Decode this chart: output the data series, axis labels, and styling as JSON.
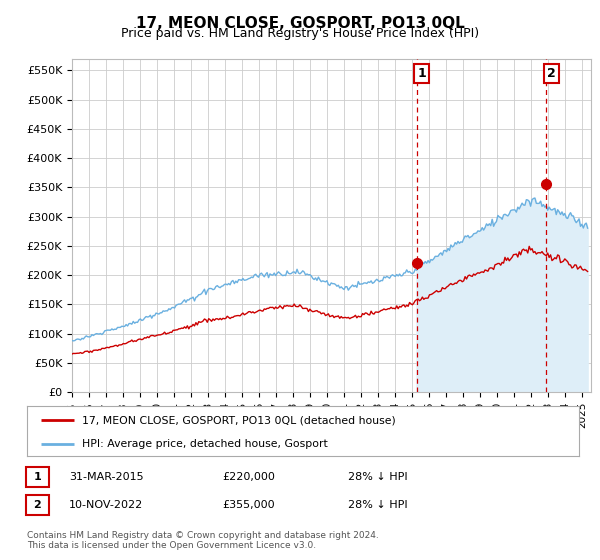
{
  "title": "17, MEON CLOSE, GOSPORT, PO13 0QL",
  "subtitle": "Price paid vs. HM Land Registry's House Price Index (HPI)",
  "ylabel_ticks": [
    "£0",
    "£50K",
    "£100K",
    "£150K",
    "£200K",
    "£250K",
    "£300K",
    "£350K",
    "£400K",
    "£450K",
    "£500K",
    "£550K"
  ],
  "ytick_values": [
    0,
    50000,
    100000,
    150000,
    200000,
    250000,
    300000,
    350000,
    400000,
    450000,
    500000,
    550000
  ],
  "ylim": [
    0,
    570000
  ],
  "xlim_start": 1995.0,
  "xlim_end": 2025.5,
  "vline1_x": 2015.25,
  "vline2_x": 2022.87,
  "marker1_x": 2015.25,
  "marker1_y": 220000,
  "marker2_x": 2022.87,
  "marker2_y": 355000,
  "hpi_color": "#6ab0e0",
  "hpi_fill_color": "#deeef8",
  "price_color": "#cc0000",
  "vline_color": "#cc0000",
  "background_color": "#ffffff",
  "grid_color": "#cccccc",
  "legend_label1": "17, MEON CLOSE, GOSPORT, PO13 0QL (detached house)",
  "legend_label2": "HPI: Average price, detached house, Gosport",
  "annotation1_label": "1",
  "annotation2_label": "2",
  "table_row1": [
    "1",
    "31-MAR-2015",
    "£220,000",
    "28% ↓ HPI"
  ],
  "table_row2": [
    "2",
    "10-NOV-2022",
    "£355,000",
    "28% ↓ HPI"
  ],
  "footer": "Contains HM Land Registry data © Crown copyright and database right 2024.\nThis data is licensed under the Open Government Licence v3.0.",
  "title_fontsize": 11,
  "subtitle_fontsize": 9
}
